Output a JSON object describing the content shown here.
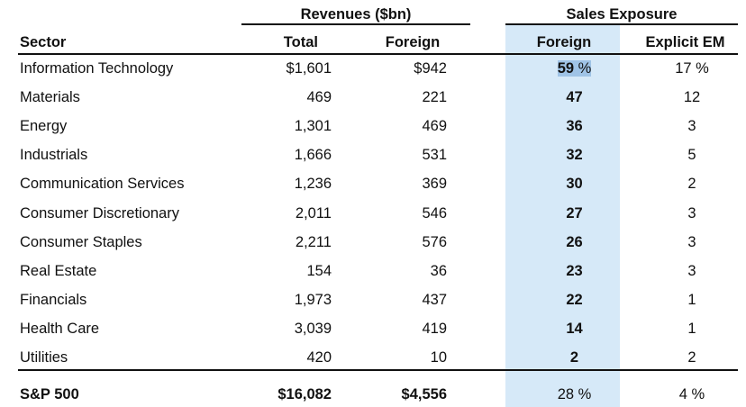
{
  "table": {
    "group_headers": {
      "revenues": "Revenues  ($bn)",
      "sales_exposure": "Sales Exposure"
    },
    "columns": [
      "Sector",
      "Total",
      "Foreign",
      "Foreign",
      "Explicit EM"
    ],
    "rows": [
      {
        "sector": "Information Technology",
        "total": "$1,601",
        "foreign_rev": "$942",
        "foreign_pct": "59",
        "foreign_unit": " %",
        "em": "17 %"
      },
      {
        "sector": "Materials",
        "total": "469",
        "foreign_rev": "221",
        "foreign_pct": "47",
        "foreign_unit": "",
        "em": "12"
      },
      {
        "sector": "Energy",
        "total": "1,301",
        "foreign_rev": "469",
        "foreign_pct": "36",
        "foreign_unit": "",
        "em": "3"
      },
      {
        "sector": "Industrials",
        "total": "1,666",
        "foreign_rev": "531",
        "foreign_pct": "32",
        "foreign_unit": "",
        "em": "5"
      },
      {
        "sector": "Communication Services",
        "total": "1,236",
        "foreign_rev": "369",
        "foreign_pct": "30",
        "foreign_unit": "",
        "em": "2"
      },
      {
        "sector": "Consumer Discretionary",
        "total": "2,011",
        "foreign_rev": "546",
        "foreign_pct": "27",
        "foreign_unit": "",
        "em": "3"
      },
      {
        "sector": "Consumer Staples",
        "total": "2,211",
        "foreign_rev": "576",
        "foreign_pct": "26",
        "foreign_unit": "",
        "em": "3"
      },
      {
        "sector": "Real Estate",
        "total": "154",
        "foreign_rev": "36",
        "foreign_pct": "23",
        "foreign_unit": "",
        "em": "3"
      },
      {
        "sector": "Financials",
        "total": "1,973",
        "foreign_rev": "437",
        "foreign_pct": "22",
        "foreign_unit": "",
        "em": "1"
      },
      {
        "sector": "Health Care",
        "total": "3,039",
        "foreign_rev": "419",
        "foreign_pct": "14",
        "foreign_unit": "",
        "em": "1"
      },
      {
        "sector": "Utilities",
        "total": "420",
        "foreign_rev": "10",
        "foreign_pct": "2",
        "foreign_unit": "",
        "em": "2"
      }
    ],
    "total_row": {
      "sector": "S&P 500",
      "total": "$16,082",
      "foreign_rev": "$4,556",
      "foreign_pct": "28 %",
      "em": "4 %"
    }
  },
  "colors": {
    "highlight": "#d6e9f8",
    "selection": "#9fc3e6",
    "rule": "#111111"
  }
}
